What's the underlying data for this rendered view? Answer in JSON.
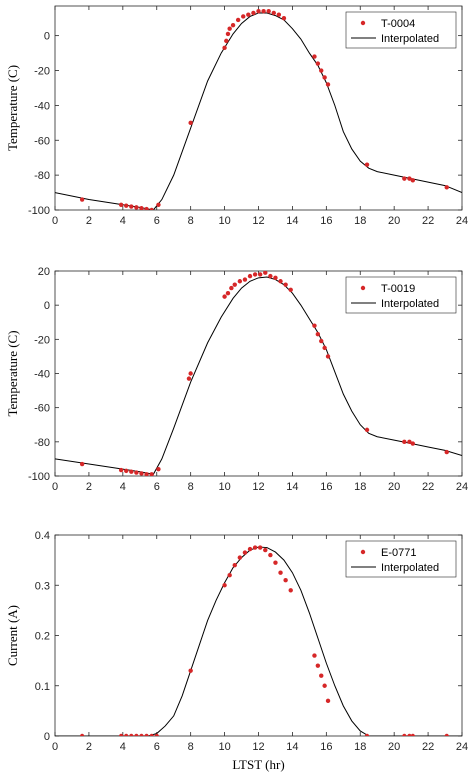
{
  "chart_data": [
    {
      "type": "line",
      "ylabel": "Temperature (C)",
      "xlabel": "",
      "xlim": [
        0,
        24
      ],
      "ylim": [
        -100,
        17
      ],
      "xticks": [
        0,
        2,
        4,
        6,
        8,
        10,
        12,
        14,
        16,
        18,
        20,
        22,
        24
      ],
      "yticks": [
        -100,
        -80,
        -60,
        -40,
        -20,
        0
      ],
      "legend_position": "top-right",
      "colors": {
        "observed": "#d62728",
        "interpolated": "#000000"
      },
      "series": [
        {
          "name": "T-0004",
          "style": "markers",
          "x": [
            1.6,
            3.9,
            4.2,
            4.5,
            4.8,
            5.1,
            5.4,
            5.7,
            6.1,
            8.0,
            10.0,
            10.1,
            10.2,
            10.3,
            10.5,
            10.8,
            11.1,
            11.4,
            11.7,
            12.0,
            12.3,
            12.6,
            12.9,
            13.2,
            13.5,
            15.3,
            15.5,
            15.7,
            15.9,
            16.1,
            18.4,
            20.6,
            20.9,
            21.1,
            23.1
          ],
          "y": [
            -94,
            -97,
            -97.5,
            -98,
            -98.5,
            -99,
            -99.5,
            -100,
            -97,
            -50,
            -7,
            -3,
            1,
            4,
            6,
            9,
            11,
            12,
            13,
            14,
            14,
            14,
            13,
            12,
            10,
            -12,
            -16,
            -20,
            -24,
            -28,
            -74,
            -82,
            -82,
            -83,
            -87
          ]
        },
        {
          "name": "Interpolated",
          "style": "line",
          "x": [
            0,
            2,
            4,
            5,
            5.8,
            6.3,
            7,
            8,
            9,
            9.8,
            10.5,
            11,
            11.5,
            12,
            12.5,
            13,
            13.5,
            14,
            14.5,
            15,
            15.5,
            16,
            16.5,
            17,
            17.5,
            18,
            18.5,
            19,
            20,
            21,
            22,
            23,
            24
          ],
          "y": [
            -90,
            -94,
            -97,
            -98.5,
            -100,
            -94,
            -80,
            -53,
            -26,
            -10,
            1,
            7,
            11,
            13,
            13,
            11.5,
            9,
            4,
            -2,
            -10,
            -17,
            -27,
            -40,
            -55,
            -65,
            -72,
            -76,
            -78,
            -80,
            -82,
            -84,
            -86,
            -90
          ]
        }
      ]
    },
    {
      "type": "line",
      "ylabel": "Temperature (C)",
      "xlabel": "",
      "xlim": [
        0,
        24
      ],
      "ylim": [
        -100,
        20
      ],
      "xticks": [
        0,
        2,
        4,
        6,
        8,
        10,
        12,
        14,
        16,
        18,
        20,
        22,
        24
      ],
      "yticks": [
        -100,
        -80,
        -60,
        -40,
        -20,
        0,
        20
      ],
      "legend_position": "top-right",
      "colors": {
        "observed": "#d62728",
        "interpolated": "#000000"
      },
      "series": [
        {
          "name": "T-0019",
          "style": "markers",
          "x": [
            1.6,
            3.9,
            4.2,
            4.5,
            4.8,
            5.1,
            5.4,
            5.7,
            6.1,
            7.9,
            8.0,
            10.0,
            10.2,
            10.4,
            10.6,
            10.9,
            11.2,
            11.5,
            11.8,
            12.1,
            12.4,
            12.7,
            13.0,
            13.3,
            13.6,
            13.9,
            15.3,
            15.5,
            15.7,
            15.9,
            16.1,
            18.4,
            20.6,
            20.9,
            21.1,
            23.1
          ],
          "y": [
            -93,
            -96.5,
            -97,
            -97.5,
            -98,
            -98.5,
            -99,
            -99,
            -96,
            -43,
            -40,
            5,
            7,
            10,
            12,
            14,
            15,
            17,
            18,
            18,
            19,
            17,
            16,
            14,
            12,
            9,
            -12,
            -17,
            -21,
            -25,
            -30,
            -73,
            -80,
            -80,
            -81,
            -86
          ]
        },
        {
          "name": "Interpolated",
          "style": "line",
          "x": [
            0,
            2,
            4,
            5,
            5.8,
            6.3,
            7,
            8,
            9,
            9.8,
            10.5,
            11,
            11.5,
            12,
            12.5,
            13,
            13.5,
            14,
            14.5,
            15,
            15.5,
            16,
            16.5,
            17,
            17.5,
            18,
            18.5,
            19,
            20,
            21,
            22,
            23,
            24
          ],
          "y": [
            -90,
            -93,
            -96,
            -97.5,
            -99,
            -90,
            -72,
            -45,
            -22,
            -7,
            4,
            10,
            14,
            16,
            16.5,
            15,
            12,
            7,
            0,
            -8,
            -16,
            -26,
            -39,
            -52,
            -62,
            -70,
            -75,
            -77,
            -79,
            -81,
            -83,
            -85,
            -88
          ]
        }
      ]
    },
    {
      "type": "line",
      "ylabel": "Current (A)",
      "xlabel": "LTST (hr)",
      "xlim": [
        0,
        24
      ],
      "ylim": [
        0,
        0.4
      ],
      "xticks": [
        0,
        2,
        4,
        6,
        8,
        10,
        12,
        14,
        16,
        18,
        20,
        22,
        24
      ],
      "yticks": [
        0,
        0.1,
        0.2,
        0.3,
        0.4
      ],
      "legend_position": "top-right",
      "colors": {
        "observed": "#d62728",
        "interpolated": "#000000"
      },
      "series": [
        {
          "name": "E-0771",
          "style": "markers",
          "x": [
            1.6,
            3.9,
            4.2,
            4.5,
            4.8,
            5.1,
            5.4,
            5.7,
            6.0,
            8.0,
            10.0,
            10.3,
            10.6,
            10.9,
            11.2,
            11.5,
            11.8,
            12.1,
            12.4,
            12.7,
            13.0,
            13.3,
            13.6,
            13.9,
            15.3,
            15.5,
            15.7,
            15.9,
            16.1,
            18.4,
            20.6,
            20.9,
            21.1,
            23.1
          ],
          "y": [
            0,
            0,
            0,
            0,
            0,
            0,
            0,
            0,
            0,
            0.13,
            0.3,
            0.32,
            0.34,
            0.355,
            0.365,
            0.372,
            0.375,
            0.375,
            0.37,
            0.36,
            0.345,
            0.325,
            0.31,
            0.29,
            0.16,
            0.14,
            0.12,
            0.1,
            0.07,
            0,
            0,
            0,
            0,
            0
          ]
        },
        {
          "name": "Interpolated",
          "style": "line",
          "x": [
            0,
            5.5,
            6.0,
            6.5,
            7,
            7.5,
            8,
            8.5,
            9,
            9.5,
            10,
            10.5,
            11,
            11.5,
            12,
            12.5,
            13,
            13.5,
            14,
            14.5,
            15,
            15.5,
            16,
            16.5,
            17,
            17.5,
            18,
            18.5,
            24
          ],
          "y": [
            0,
            0,
            0.005,
            0.02,
            0.04,
            0.08,
            0.13,
            0.18,
            0.23,
            0.27,
            0.305,
            0.335,
            0.355,
            0.37,
            0.376,
            0.375,
            0.366,
            0.35,
            0.325,
            0.29,
            0.245,
            0.195,
            0.145,
            0.1,
            0.06,
            0.03,
            0.01,
            0,
            0
          ]
        }
      ]
    }
  ]
}
